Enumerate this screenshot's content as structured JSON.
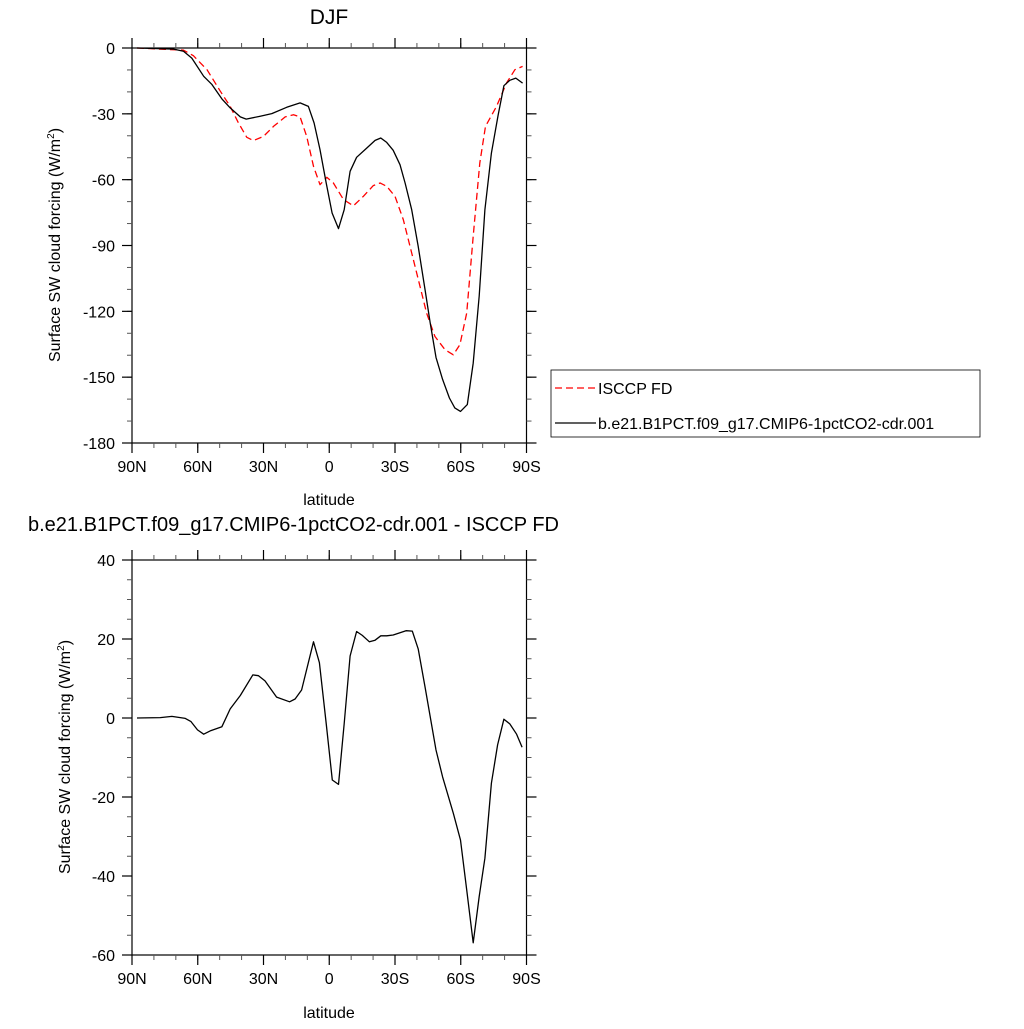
{
  "chart_data": [
    {
      "type": "line",
      "title": "DJF",
      "xlabel": "latitude",
      "ylabel": "Surface SW cloud forcing (W/m2)",
      "xlim": [
        90,
        -90
      ],
      "ylim": [
        -180,
        0
      ],
      "xticks": [
        90,
        60,
        30,
        0,
        -30,
        -60,
        -90
      ],
      "xtick_labels": [
        "90N",
        "60N",
        "30N",
        "0",
        "30S",
        "60S",
        "90S"
      ],
      "yticks": [
        0,
        -30,
        -60,
        -90,
        -120,
        -150,
        -180
      ],
      "ytick_labels": [
        "0",
        "-30",
        "-60",
        "-90",
        "-120",
        "-150",
        "-180"
      ],
      "grid": false,
      "legend": "right",
      "series": [
        {
          "name": "ISCCP FD",
          "color": "#ff0000",
          "dash": "dashed",
          "x": [
            87.7,
            66.5,
            62,
            55.8,
            49.7,
            45.2,
            41.4,
            37.6,
            34.6,
            30,
            25.4,
            20.1,
            16.3,
            13.3,
            10.3,
            7.2,
            4.2,
            1.1,
            -1.9,
            -6.5,
            -11,
            -15.6,
            -20.1,
            -23.2,
            -26.2,
            -30,
            -33.8,
            -37.6,
            -41.4,
            -44.4,
            -48.2,
            -52.8,
            -56.6,
            -59.6,
            -62.7,
            -65.7,
            -68.7,
            -71.3,
            -76.3,
            -80.9,
            -84.7,
            -88.2
          ],
          "y": [
            0,
            -1,
            -3.5,
            -9.9,
            -19.7,
            -26.6,
            -34.2,
            -40.7,
            -42.2,
            -40.3,
            -35.7,
            -31.4,
            -30.4,
            -31.4,
            -40.3,
            -53.9,
            -62.3,
            -58.9,
            -61.5,
            -69.1,
            -71.9,
            -67.6,
            -62.7,
            -61.5,
            -63,
            -67.6,
            -78.2,
            -93.4,
            -108.6,
            -120.8,
            -131.4,
            -137.5,
            -139.8,
            -135.2,
            -120.8,
            -85.8,
            -52.4,
            -35.7,
            -26.6,
            -15.9,
            -9.9,
            -8.4
          ]
        },
        {
          "name": "b.e21.B1PCT.f09_g17.CMIP6-1pctCO2-cdr.001",
          "color": "#000000",
          "dash": "solid",
          "x": [
            87.7,
            71,
            66.5,
            62.7,
            57.3,
            53.5,
            49,
            45.2,
            40.6,
            37.9,
            31.5,
            26.2,
            19.4,
            13.3,
            9.5,
            6.9,
            4.2,
            1.4,
            -1.3,
            -4.2,
            -6.8,
            -9.5,
            -12.5,
            -17.1,
            -20.9,
            -23.5,
            -26.2,
            -29.2,
            -32.3,
            -34.6,
            -37.6,
            -40.6,
            -43.7,
            -46,
            -48.7,
            -51.7,
            -54.8,
            -57.3,
            -59.9,
            -63,
            -65.7,
            -68.4,
            -71,
            -74,
            -77.1,
            -79.7,
            -82.4,
            -85.1,
            -88.2
          ],
          "y": [
            0,
            -0.5,
            -1.5,
            -4.6,
            -12.9,
            -16.7,
            -23.2,
            -27.3,
            -31.4,
            -32.4,
            -31.1,
            -29.9,
            -27,
            -25,
            -26.6,
            -34.2,
            -46.3,
            -61.5,
            -75.2,
            -82.3,
            -73.7,
            -56.2,
            -49.8,
            -45.6,
            -42.1,
            -41,
            -43,
            -46.6,
            -53.2,
            -61.5,
            -73.7,
            -90.4,
            -110,
            -125,
            -141,
            -151,
            -159.5,
            -164,
            -165.6,
            -162.5,
            -143.6,
            -113,
            -73.7,
            -47.9,
            -30.4,
            -17.2,
            -14.7,
            -13.7,
            -16
          ]
        }
      ]
    },
    {
      "type": "line",
      "title": "b.e21.B1PCT.f09_g17.CMIP6-1pctCO2-cdr.001 - ISCCP FD",
      "xlabel": "latitude",
      "ylabel": "Surface SW cloud forcing (W/m2)",
      "xlim": [
        90,
        -90
      ],
      "ylim": [
        -60,
        40
      ],
      "xticks": [
        90,
        60,
        30,
        0,
        -30,
        -60,
        -90
      ],
      "xtick_labels": [
        "90N",
        "60N",
        "30N",
        "0",
        "30S",
        "60S",
        "90S"
      ],
      "yticks": [
        40,
        20,
        0,
        -20,
        -40,
        -60
      ],
      "ytick_labels": [
        "40",
        "20",
        "0",
        "-20",
        "-40",
        "-60"
      ],
      "grid": false,
      "series": [
        {
          "color": "#000000",
          "dash": "solid",
          "x": [
            87.7,
            77.1,
            71.8,
            65.7,
            63.1,
            60.1,
            57.3,
            54,
            49,
            45.2,
            40.6,
            34.9,
            32.3,
            29.3,
            24,
            18.1,
            15.6,
            12.6,
            7.2,
            4.5,
            1.4,
            -1.4,
            -4.2,
            -6.8,
            -9.5,
            -12.5,
            -15.1,
            -18.3,
            -20.9,
            -23.5,
            -26.2,
            -29.2,
            -35,
            -37.9,
            -40.6,
            -43.7,
            -48.7,
            -51.7,
            -56.6,
            -59.9,
            -62.7,
            -65.7,
            -68.4,
            -71,
            -74,
            -76.8,
            -79.7,
            -82.4,
            -85.5,
            -88
          ],
          "y": [
            0,
            0.1,
            0.4,
            -0.1,
            -0.9,
            -3,
            -4.1,
            -3.2,
            -2.2,
            2.3,
            5.7,
            10.9,
            10.7,
            9.4,
            5.3,
            4.1,
            4.8,
            7.1,
            19.3,
            14,
            -1.4,
            -15.7,
            -16.8,
            -1.4,
            15.7,
            21.9,
            20.9,
            19.3,
            19.7,
            20.8,
            20.8,
            21,
            22.1,
            22,
            17.5,
            7.9,
            -8.1,
            -14.9,
            -24.1,
            -30.9,
            -43.5,
            -56.9,
            -45.2,
            -35.5,
            -16.5,
            -6.8,
            -0.3,
            -1.5,
            -4.1,
            -7.4
          ]
        }
      ]
    }
  ]
}
